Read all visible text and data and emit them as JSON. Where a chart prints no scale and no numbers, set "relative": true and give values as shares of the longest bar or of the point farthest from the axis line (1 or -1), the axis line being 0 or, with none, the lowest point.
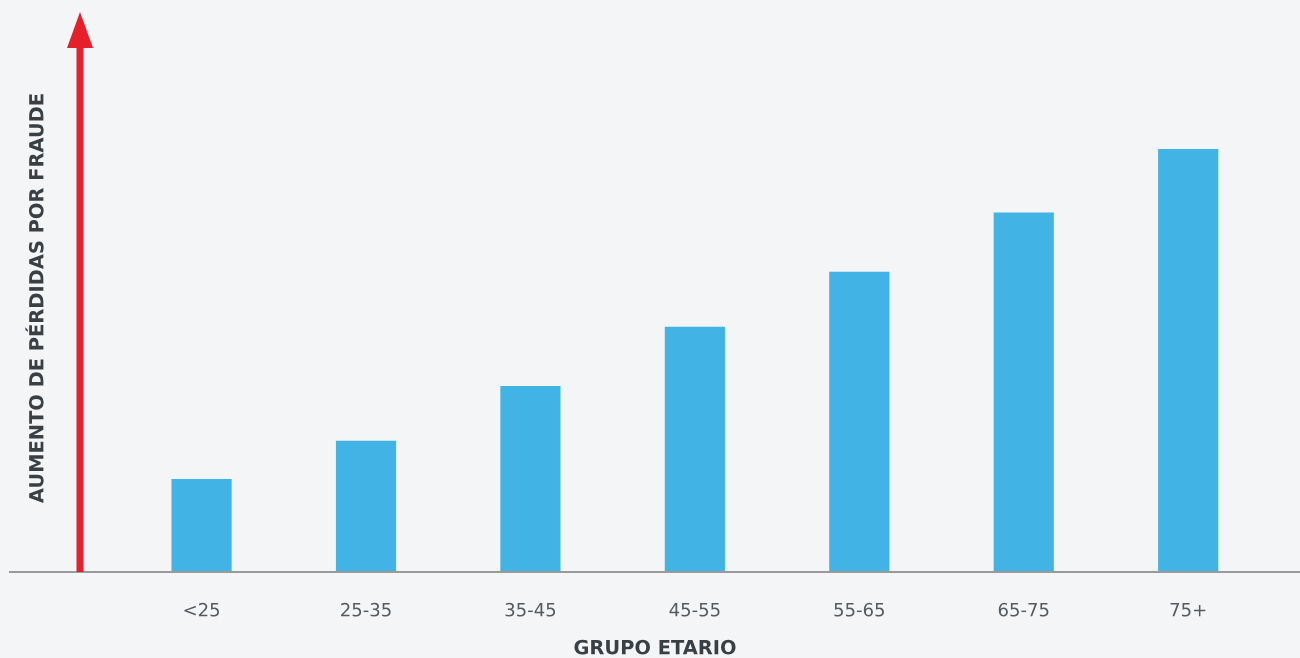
{
  "chart_data": {
    "type": "bar",
    "xlabel": "GRUPO ETARIO",
    "ylabel": "AUMENTO DE PÉRDIDAS POR FRAUDE",
    "categories": [
      "<25",
      "25-35",
      "35-45",
      "45-55",
      "55-65",
      "65-75",
      "75+"
    ],
    "values": [
      0.22,
      0.31,
      0.44,
      0.58,
      0.71,
      0.85,
      1
    ],
    "color": "#41b4e5",
    "relative": true,
    "grid": false,
    "legend": false
  }
}
